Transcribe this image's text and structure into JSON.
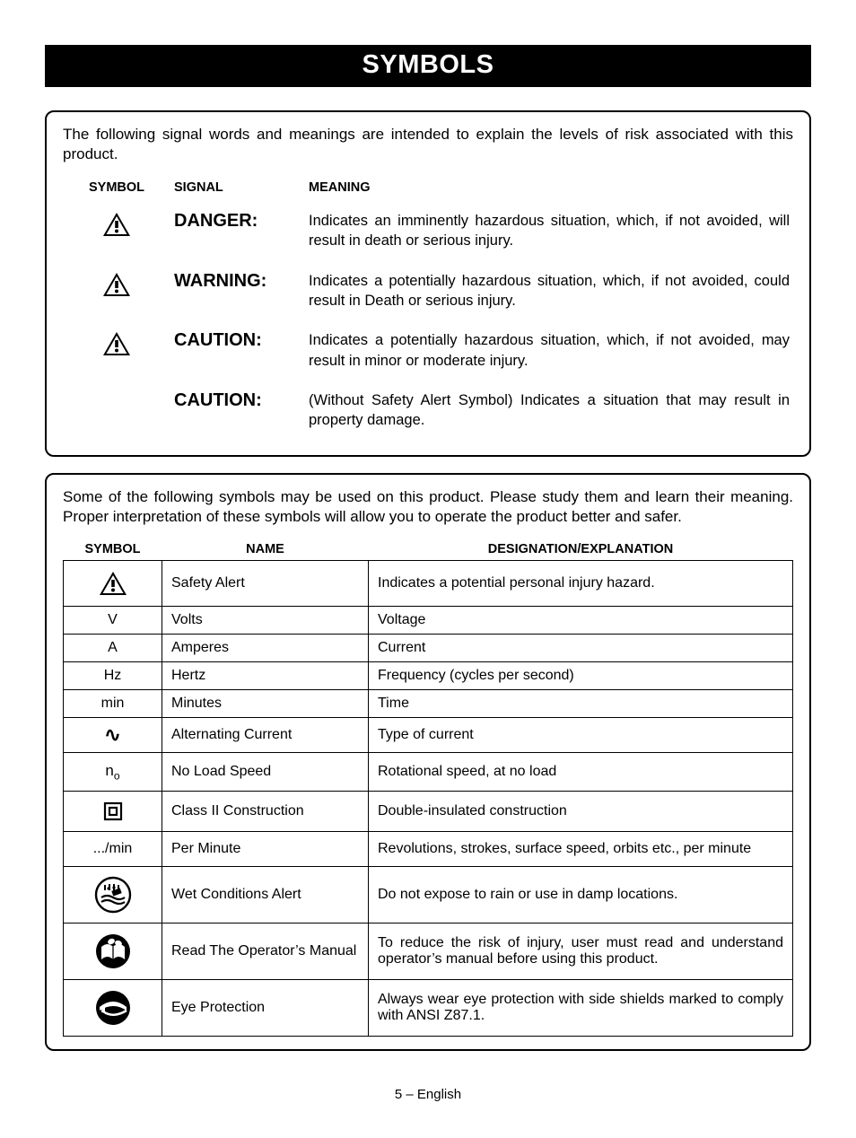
{
  "title": "SYMBOLS",
  "box1": {
    "intro": "The following signal words and meanings are intended to explain the levels of risk associated with this product.",
    "headers": {
      "symbol": "SYMBOL",
      "signal": "SIGNAL",
      "meaning": "MEANING"
    },
    "rows": [
      {
        "icon": "alert",
        "signal": "DANGER:",
        "meaning": "Indicates an imminently hazardous situation, which, if not avoided, will result in death or serious injury."
      },
      {
        "icon": "alert",
        "signal": "WARNING:",
        "meaning": "Indicates a potentially hazardous situation, which, if not avoided, could result in Death or serious injury."
      },
      {
        "icon": "alert",
        "signal": "CAUTION:",
        "meaning": "Indicates a potentially hazardous situation, which, if not avoided, may result in minor or moderate injury."
      },
      {
        "icon": "",
        "signal": "CAUTION:",
        "meaning": "(Without Safety Alert Symbol) Indicates a situation that may result in property damage."
      }
    ]
  },
  "box2": {
    "intro": "Some of the following symbols may be used on this product. Please study them and learn their meaning. Proper interpretation of these symbols will allow you to operate the product better and safer.",
    "headers": {
      "symbol": "SYMBOL",
      "name": "NAME",
      "designation": "DESIGNATION/EXPLANATION"
    },
    "rows": [
      {
        "sym": "alert",
        "name": "Safety Alert",
        "desc": "Indicates a potential personal injury hazard."
      },
      {
        "sym": "V",
        "name": "Volts",
        "desc": "Voltage"
      },
      {
        "sym": "A",
        "name": "Amperes",
        "desc": "Current"
      },
      {
        "sym": "Hz",
        "name": "Hertz",
        "desc": "Frequency (cycles per second)"
      },
      {
        "sym": "min",
        "name": "Minutes",
        "desc": "Time"
      },
      {
        "sym": "ac",
        "name": "Alternating Current",
        "desc": "Type of current"
      },
      {
        "sym": "no",
        "name": "No Load Speed",
        "desc": "Rotational speed, at no load"
      },
      {
        "sym": "class2",
        "name": "Class II Construction",
        "desc": "Double-insulated construction"
      },
      {
        "sym": ".../min",
        "name": "Per Minute",
        "desc": "Revolutions, strokes, surface speed, orbits etc., per minute"
      },
      {
        "sym": "wet",
        "name": "Wet Conditions Alert",
        "desc": "Do not expose to rain or use in damp locations."
      },
      {
        "sym": "manual",
        "name": "Read The Operator’s Manual",
        "desc": "To reduce the risk of injury, user must read and understand operator’s manual before using this product."
      },
      {
        "sym": "eye",
        "name": "Eye Protection",
        "desc": "Always wear eye protection with side shields marked to comply with ANSI Z87.1."
      }
    ]
  },
  "footer": "5 – English",
  "colors": {
    "bg": "#ffffff",
    "fg": "#000000",
    "titlebar_bg": "#000000",
    "titlebar_fg": "#ffffff"
  }
}
